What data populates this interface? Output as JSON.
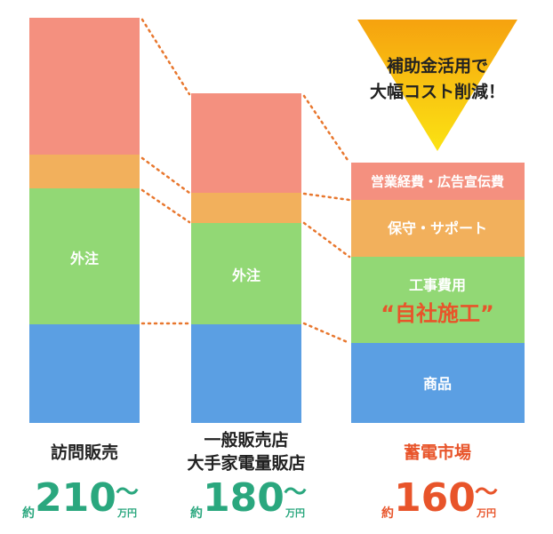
{
  "callout": {
    "lines": [
      "補助金活用で",
      "大幅コスト削減！"
    ]
  },
  "columns": [
    {
      "name_lines": [
        "訪問販売"
      ],
      "segments": [
        "外注"
      ],
      "prefix": "約",
      "price": "210",
      "tilde": "〜",
      "unit": "万円"
    },
    {
      "name_lines": [
        "一般販売店",
        "大手家電量販店"
      ],
      "segments": [
        "外注"
      ],
      "prefix": "約",
      "price": "180",
      "tilde": "〜",
      "unit": "万円"
    },
    {
      "name_lines": [
        "蓄電市場"
      ],
      "segments": [
        "営業経費・広告宣伝費",
        "保守・サポート",
        "工事費用",
        "“自社施工”",
        "商品"
      ],
      "prefix": "約",
      "price": "160",
      "tilde": "〜",
      "unit": "万円"
    }
  ]
}
